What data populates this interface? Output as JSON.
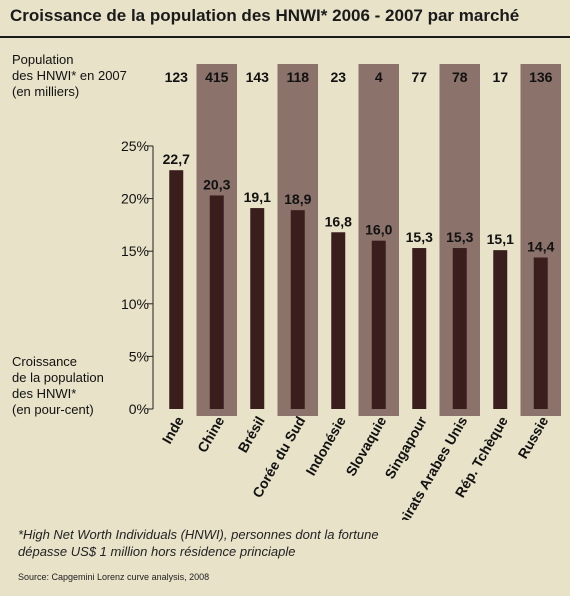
{
  "title": "Croissance de la population des HNWI* 2006 - 2007 par marché",
  "population_label": "Population\ndes HNWI* en 2007\n(en milliers)",
  "growth_label": "Croissance\nde la population\ndes HNWI*\n(en pour-cent)",
  "footnote_line1": "*High Net Worth Individuals (HNWI), personnes dont la fortune",
  "footnote_line2": "dépasse US$ 1 million hors résidence princiaple",
  "source": "Source: Capgemini Lorenz curve analysis, 2008",
  "colors": {
    "background": "#e7e2c8",
    "bar": "#3a1e1e",
    "band": "#8b736b",
    "text": "#111111"
  },
  "chart_data": {
    "type": "bar",
    "categories": [
      "Inde",
      "Chine",
      "Brésil",
      "Corée du Sud",
      "Indonésie",
      "Slovaquie",
      "Singapour",
      "Emirats Arabes Unis",
      "Rép. Tchèque",
      "Russie"
    ],
    "values": [
      22.7,
      20.3,
      19.1,
      18.9,
      16.8,
      16.0,
      15.3,
      15.3,
      15.1,
      14.4
    ],
    "value_labels": [
      "22,7",
      "20,3",
      "19,1",
      "18,9",
      "16,8",
      "16,0",
      "15,3",
      "15,3",
      "15,1",
      "14,4"
    ],
    "population": [
      "123",
      "415",
      "143",
      "118",
      "23",
      "4",
      "77",
      "78",
      "17",
      "136"
    ],
    "highlighted": [
      false,
      true,
      false,
      true,
      false,
      true,
      false,
      true,
      false,
      true
    ],
    "ylim": [
      0,
      25
    ],
    "yticks": [
      0,
      5,
      10,
      15,
      20,
      25
    ],
    "ytick_labels": [
      "0%",
      "5%",
      "10%",
      "15%",
      "20%",
      "25%"
    ],
    "xlabel": "",
    "ylabel": ""
  }
}
